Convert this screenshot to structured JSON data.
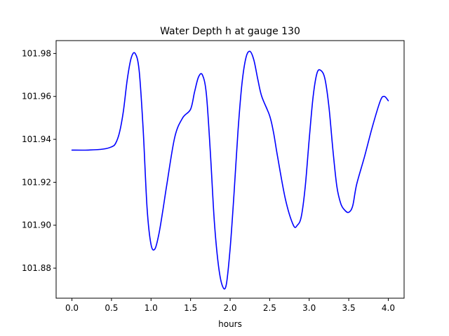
{
  "chart_data": {
    "type": "line",
    "title": "Water Depth h at gauge 130",
    "xlabel": "hours",
    "ylabel": "",
    "xlim": [
      -0.2,
      4.2
    ],
    "ylim": [
      101.866,
      101.986
    ],
    "xticks": [
      0.0,
      0.5,
      1.0,
      1.5,
      2.0,
      2.5,
      3.0,
      3.5,
      4.0
    ],
    "xtick_labels": [
      "0.0",
      "0.5",
      "1.0",
      "1.5",
      "2.0",
      "2.5",
      "3.0",
      "3.5",
      "4.0"
    ],
    "yticks": [
      101.88,
      101.9,
      101.92,
      101.94,
      101.96,
      101.98
    ],
    "ytick_labels": [
      "101.88",
      "101.90",
      "101.92",
      "101.94",
      "101.96",
      "101.98"
    ],
    "grid": false,
    "series": [
      {
        "color": "#0000ff",
        "x": [
          0.0,
          0.2,
          0.4,
          0.5,
          0.55,
          0.6,
          0.65,
          0.7,
          0.75,
          0.8,
          0.85,
          0.9,
          0.95,
          1.0,
          1.05,
          1.1,
          1.15,
          1.2,
          1.3,
          1.4,
          1.5,
          1.55,
          1.6,
          1.65,
          1.7,
          1.75,
          1.8,
          1.85,
          1.9,
          1.95,
          2.0,
          2.05,
          2.1,
          2.15,
          2.2,
          2.25,
          2.3,
          2.35,
          2.4,
          2.5,
          2.55,
          2.6,
          2.7,
          2.8,
          2.85,
          2.9,
          2.95,
          3.0,
          3.05,
          3.1,
          3.15,
          3.2,
          3.25,
          3.3,
          3.35,
          3.4,
          3.45,
          3.5,
          3.55,
          3.6,
          3.7,
          3.8,
          3.9,
          3.95,
          4.0
        ],
        "y": [
          101.935,
          101.935,
          101.9355,
          101.9365,
          101.938,
          101.943,
          101.953,
          101.968,
          101.978,
          101.98,
          101.972,
          101.945,
          101.908,
          101.891,
          101.889,
          101.896,
          101.907,
          101.919,
          101.941,
          101.95,
          101.954,
          101.962,
          101.969,
          101.97,
          101.961,
          101.934,
          101.902,
          101.882,
          101.872,
          101.872,
          101.889,
          101.915,
          101.944,
          101.966,
          101.978,
          101.981,
          101.977,
          101.968,
          101.96,
          101.951,
          101.943,
          101.932,
          101.912,
          101.9,
          101.9,
          101.904,
          101.918,
          101.94,
          101.96,
          101.971,
          101.972,
          101.968,
          101.955,
          101.935,
          101.918,
          101.91,
          101.907,
          101.906,
          101.909,
          101.919,
          101.932,
          101.946,
          101.958,
          101.96,
          101.958
        ]
      }
    ]
  }
}
